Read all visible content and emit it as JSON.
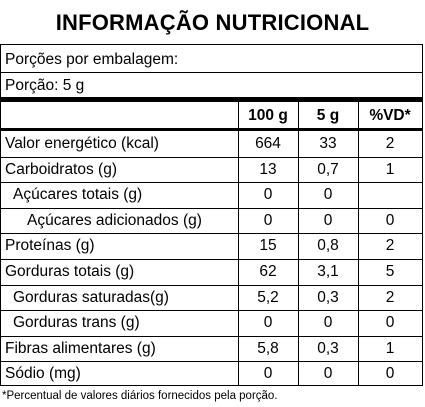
{
  "title": "INFORMAÇÃO NUTRICIONAL",
  "servings_per_package_label": "Porções por embalagem:",
  "serving_size_label": "Porção: 5 g",
  "columns": [
    "100 g",
    "5 g",
    "%VD*"
  ],
  "rows": [
    {
      "label": "Valor energético (kcal)",
      "per100": "664",
      "perServing": "33",
      "vd": "2",
      "indent": 0
    },
    {
      "label": "Carboidratos (g)",
      "per100": "13",
      "perServing": "0,7",
      "vd": "1",
      "indent": 0
    },
    {
      "label": "Açúcares totais (g)",
      "per100": "0",
      "perServing": "0",
      "vd": "",
      "indent": 1
    },
    {
      "label": "Açúcares adicionados (g)",
      "per100": "0",
      "perServing": "0",
      "vd": "0",
      "indent": 2
    },
    {
      "label": "Proteínas (g)",
      "per100": "15",
      "perServing": "0,8",
      "vd": "2",
      "indent": 0
    },
    {
      "label": "Gorduras totais (g)",
      "per100": "62",
      "perServing": "3,1",
      "vd": "5",
      "indent": 0
    },
    {
      "label": "Gorduras saturadas(g)",
      "per100": "5,2",
      "perServing": "0,3",
      "vd": "2",
      "indent": 1
    },
    {
      "label": "Gorduras trans (g)",
      "per100": "0",
      "perServing": "0",
      "vd": "0",
      "indent": 1
    },
    {
      "label": "Fibras alimentares (g)",
      "per100": "5,8",
      "perServing": "0,3",
      "vd": "1",
      "indent": 0
    },
    {
      "label": "Sódio (mg)",
      "per100": "0",
      "perServing": "0",
      "vd": "0",
      "indent": 0
    }
  ],
  "footnote": "*Percentual de valores diários fornecidos pela porção."
}
